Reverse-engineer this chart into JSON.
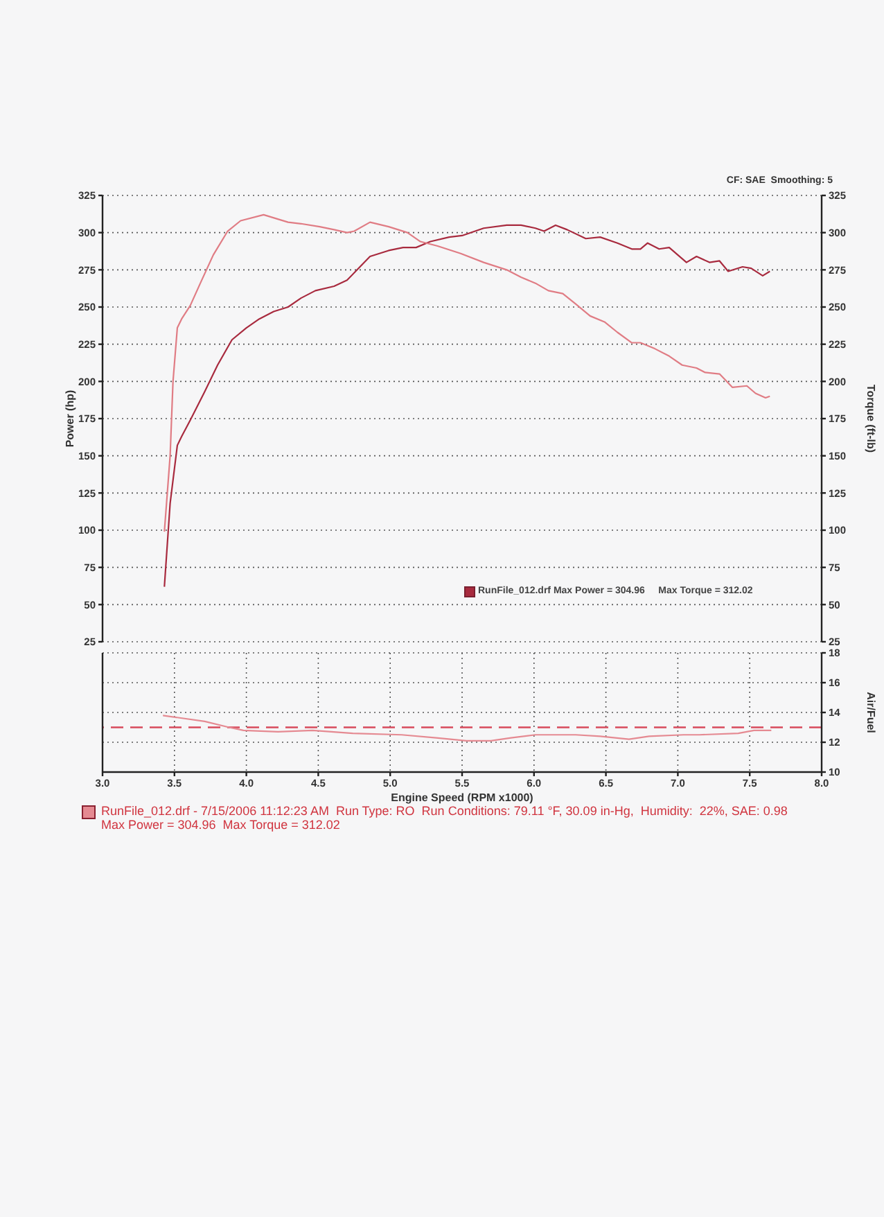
{
  "chart_data": [
    {
      "type": "line",
      "annotations": [
        "CF: SAE  Smoothing: 5",
        "RunFile_012.drf Max Power = 304.96     Max Torque = 312.02"
      ],
      "ylabel": "Power (hp)",
      "y2label": "Torque (ft-lb)",
      "xlim": [
        3,
        8
      ],
      "xticks": [
        3,
        3.5,
        4,
        4.5,
        5,
        5.5,
        6,
        6.5,
        7,
        7.5,
        8
      ],
      "ylim": [
        25,
        325
      ],
      "yticks": [
        25,
        50,
        75,
        100,
        125,
        150,
        175,
        200,
        225,
        250,
        275,
        300,
        325
      ],
      "y2lim": [
        25,
        325
      ],
      "y2ticks": [
        25,
        50,
        75,
        100,
        125,
        150,
        175,
        200,
        225,
        250,
        275,
        300,
        325
      ],
      "tick_labels": "y",
      "grid": true,
      "marker": "none",
      "line_style": "solid",
      "series": [
        {
          "color": "#a82a3e",
          "x": [
            3.43,
            3.47,
            3.52,
            3.55,
            3.61,
            3.71,
            3.8,
            3.9,
            4.0,
            4.09,
            4.19,
            4.29,
            4.38,
            4.48,
            4.61,
            4.7,
            4.77,
            4.86,
            4.99,
            5.09,
            5.18,
            5.28,
            5.41,
            5.5,
            5.65,
            5.81,
            5.91,
            6.01,
            6.07,
            6.15,
            6.23,
            6.36,
            6.46,
            6.58,
            6.68,
            6.74,
            6.79,
            6.87,
            6.94,
            7.06,
            7.13,
            7.22,
            7.29,
            7.35,
            7.45,
            7.51,
            7.59,
            7.64
          ],
          "values": [
            62,
            118,
            157,
            163,
            174,
            193,
            211,
            228,
            236,
            242,
            247,
            250,
            256,
            261,
            264,
            268,
            275,
            284,
            288,
            290,
            290,
            294,
            297,
            298,
            303,
            305,
            305,
            303,
            301,
            305,
            302,
            296,
            297,
            293,
            289,
            289,
            293,
            289,
            290,
            280,
            284,
            280,
            281,
            274,
            277,
            276,
            271,
            274
          ]
        },
        {
          "color": "#e07c84",
          "axis": "y2",
          "x": [
            3.43,
            3.47,
            3.49,
            3.52,
            3.55,
            3.61,
            3.68,
            3.77,
            3.87,
            3.96,
            4.12,
            4.29,
            4.38,
            4.51,
            4.61,
            4.7,
            4.75,
            4.86,
            4.99,
            5.12,
            5.21,
            5.33,
            5.49,
            5.65,
            5.81,
            5.91,
            6.01,
            6.1,
            6.2,
            6.29,
            6.39,
            6.49,
            6.58,
            6.68,
            6.74,
            6.84,
            6.94,
            7.03,
            7.13,
            7.19,
            7.29,
            7.38,
            7.48,
            7.54,
            7.61,
            7.64
          ],
          "values": [
            99,
            150,
            200,
            236,
            242,
            251,
            266,
            285,
            301,
            308,
            312,
            307,
            306,
            304,
            302,
            300,
            301,
            307,
            304,
            300,
            294,
            291,
            286,
            280,
            275,
            270,
            266,
            261,
            259,
            252,
            244,
            240,
            233,
            226,
            226,
            222,
            217,
            211,
            209,
            206,
            205,
            196,
            197,
            192,
            189,
            190
          ]
        }
      ]
    },
    {
      "type": "line",
      "xlabel": "Engine Speed (RPM x1000)",
      "y2label": "Air/Fuel",
      "xlim": [
        3,
        8
      ],
      "xticks": [
        {
          "value": 3,
          "label": "3.0"
        },
        3.5,
        {
          "value": 4,
          "label": "4.0"
        },
        4.5,
        {
          "value": 5,
          "label": "5.0"
        },
        5.5,
        {
          "value": 6,
          "label": "6.0"
        },
        6.5,
        {
          "value": 7,
          "label": "7.0"
        },
        7.5,
        {
          "value": 8,
          "label": "8.0"
        }
      ],
      "y2lim": [
        10,
        18
      ],
      "y2ticks": [
        10,
        12,
        14,
        16,
        18
      ],
      "grid": true,
      "marker": "none",
      "line_style": "solid",
      "ref_lines": [
        {
          "axis": "y2",
          "value": 13,
          "color": "#d84a5c",
          "line_style": "dashed"
        }
      ],
      "annotations": [
        "RunFile_012.drf - 7/15/2006 11:12:23 AM  Run Type: RO  Run Conditions: 79.11 °F, 30.09 in-Hg,  Humidity:  22%, SAE: 0.98",
        "Max Power = 304.96  Max Torque = 312.02"
      ],
      "series": [
        {
          "color": "#e58a92",
          "axis": "y2",
          "x": [
            3.42,
            3.71,
            3.88,
            3.98,
            4.22,
            4.46,
            4.74,
            5.08,
            5.32,
            5.53,
            5.7,
            5.84,
            6.01,
            6.29,
            6.46,
            6.66,
            6.8,
            7.04,
            7.15,
            7.42,
            7.53,
            7.65
          ],
          "values": [
            13.8,
            13.4,
            13.0,
            12.8,
            12.7,
            12.8,
            12.6,
            12.5,
            12.3,
            12.1,
            12.1,
            12.3,
            12.5,
            12.5,
            12.4,
            12.2,
            12.4,
            12.5,
            12.5,
            12.6,
            12.8,
            12.8
          ]
        }
      ]
    }
  ]
}
